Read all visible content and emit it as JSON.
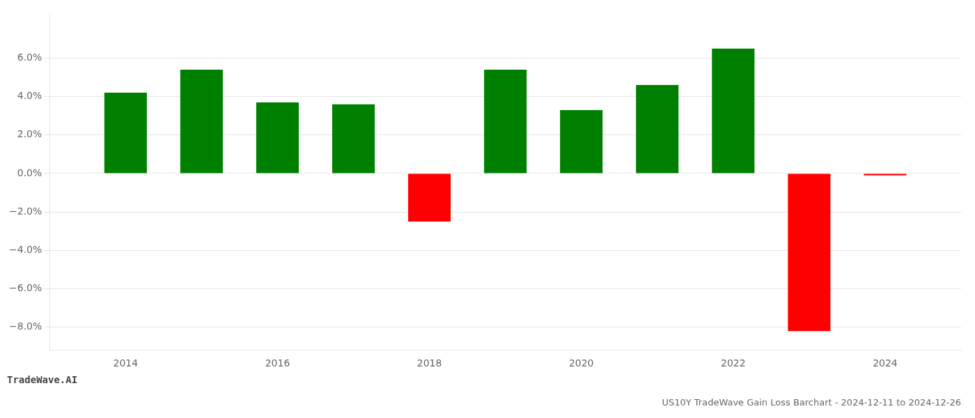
{
  "chart_data": {
    "type": "bar",
    "title": "US10Y TradeWave Gain Loss Barchart - 2024-12-11 to 2024-12-26",
    "annotations": [
      "TradeWave.AI"
    ],
    "x": [
      2014,
      2015,
      2016,
      2017,
      2018,
      2019,
      2020,
      2021,
      2022,
      2023,
      2024
    ],
    "values": [
      0.042,
      0.054,
      0.037,
      0.036,
      -0.025,
      0.054,
      0.033,
      0.046,
      0.065,
      -0.082,
      -0.001
    ],
    "colors": [
      "#008000",
      "#008000",
      "#008000",
      "#008000",
      "#ff0000",
      "#008000",
      "#008000",
      "#008000",
      "#008000",
      "#ff0000",
      "#ff0000"
    ],
    "xlim": [
      2013,
      2025
    ],
    "xticks": [
      2014,
      2016,
      2018,
      2020,
      2022,
      2024
    ],
    "ylim": [
      -0.092,
      0.083
    ],
    "yticks": [
      {
        "value": -0.08,
        "label": "−8.0%"
      },
      {
        "value": -0.06,
        "label": "−6.0%"
      },
      {
        "value": -0.04,
        "label": "−4.0%"
      },
      {
        "value": -0.02,
        "label": "−2.0%"
      },
      {
        "value": 0.0,
        "label": "0.0%"
      },
      {
        "value": 0.02,
        "label": "2.0%"
      },
      {
        "value": 0.04,
        "label": "4.0%"
      },
      {
        "value": 0.06,
        "label": "6.0%"
      }
    ],
    "grid": true
  }
}
